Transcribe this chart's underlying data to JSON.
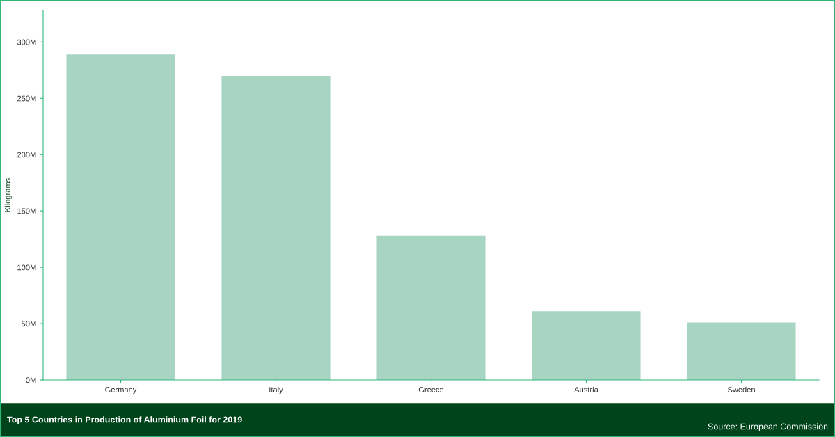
{
  "chart_data": {
    "type": "bar",
    "title": "Top 5 Countries in Production of Aluminium Foil for 2019",
    "ylabel": "Kilograms",
    "categories": [
      "Germany",
      "Italy",
      "Greece",
      "Austria",
      "Sweden"
    ],
    "values": [
      289000000,
      270000000,
      128000000,
      61000000,
      51000000
    ],
    "color": "#a8d5c2",
    "ylim": [
      0,
      328000000
    ],
    "yticks": [
      {
        "value": 0,
        "label": "0M"
      },
      {
        "value": 50000000,
        "label": "50M"
      },
      {
        "value": 100000000,
        "label": "100M"
      },
      {
        "value": 150000000,
        "label": "150M"
      },
      {
        "value": 200000000,
        "label": "200M"
      },
      {
        "value": 250000000,
        "label": "250M"
      },
      {
        "value": 300000000,
        "label": "300M"
      }
    ],
    "grid": false,
    "legend": false,
    "annotations": [
      "Source: European Commission"
    ]
  }
}
